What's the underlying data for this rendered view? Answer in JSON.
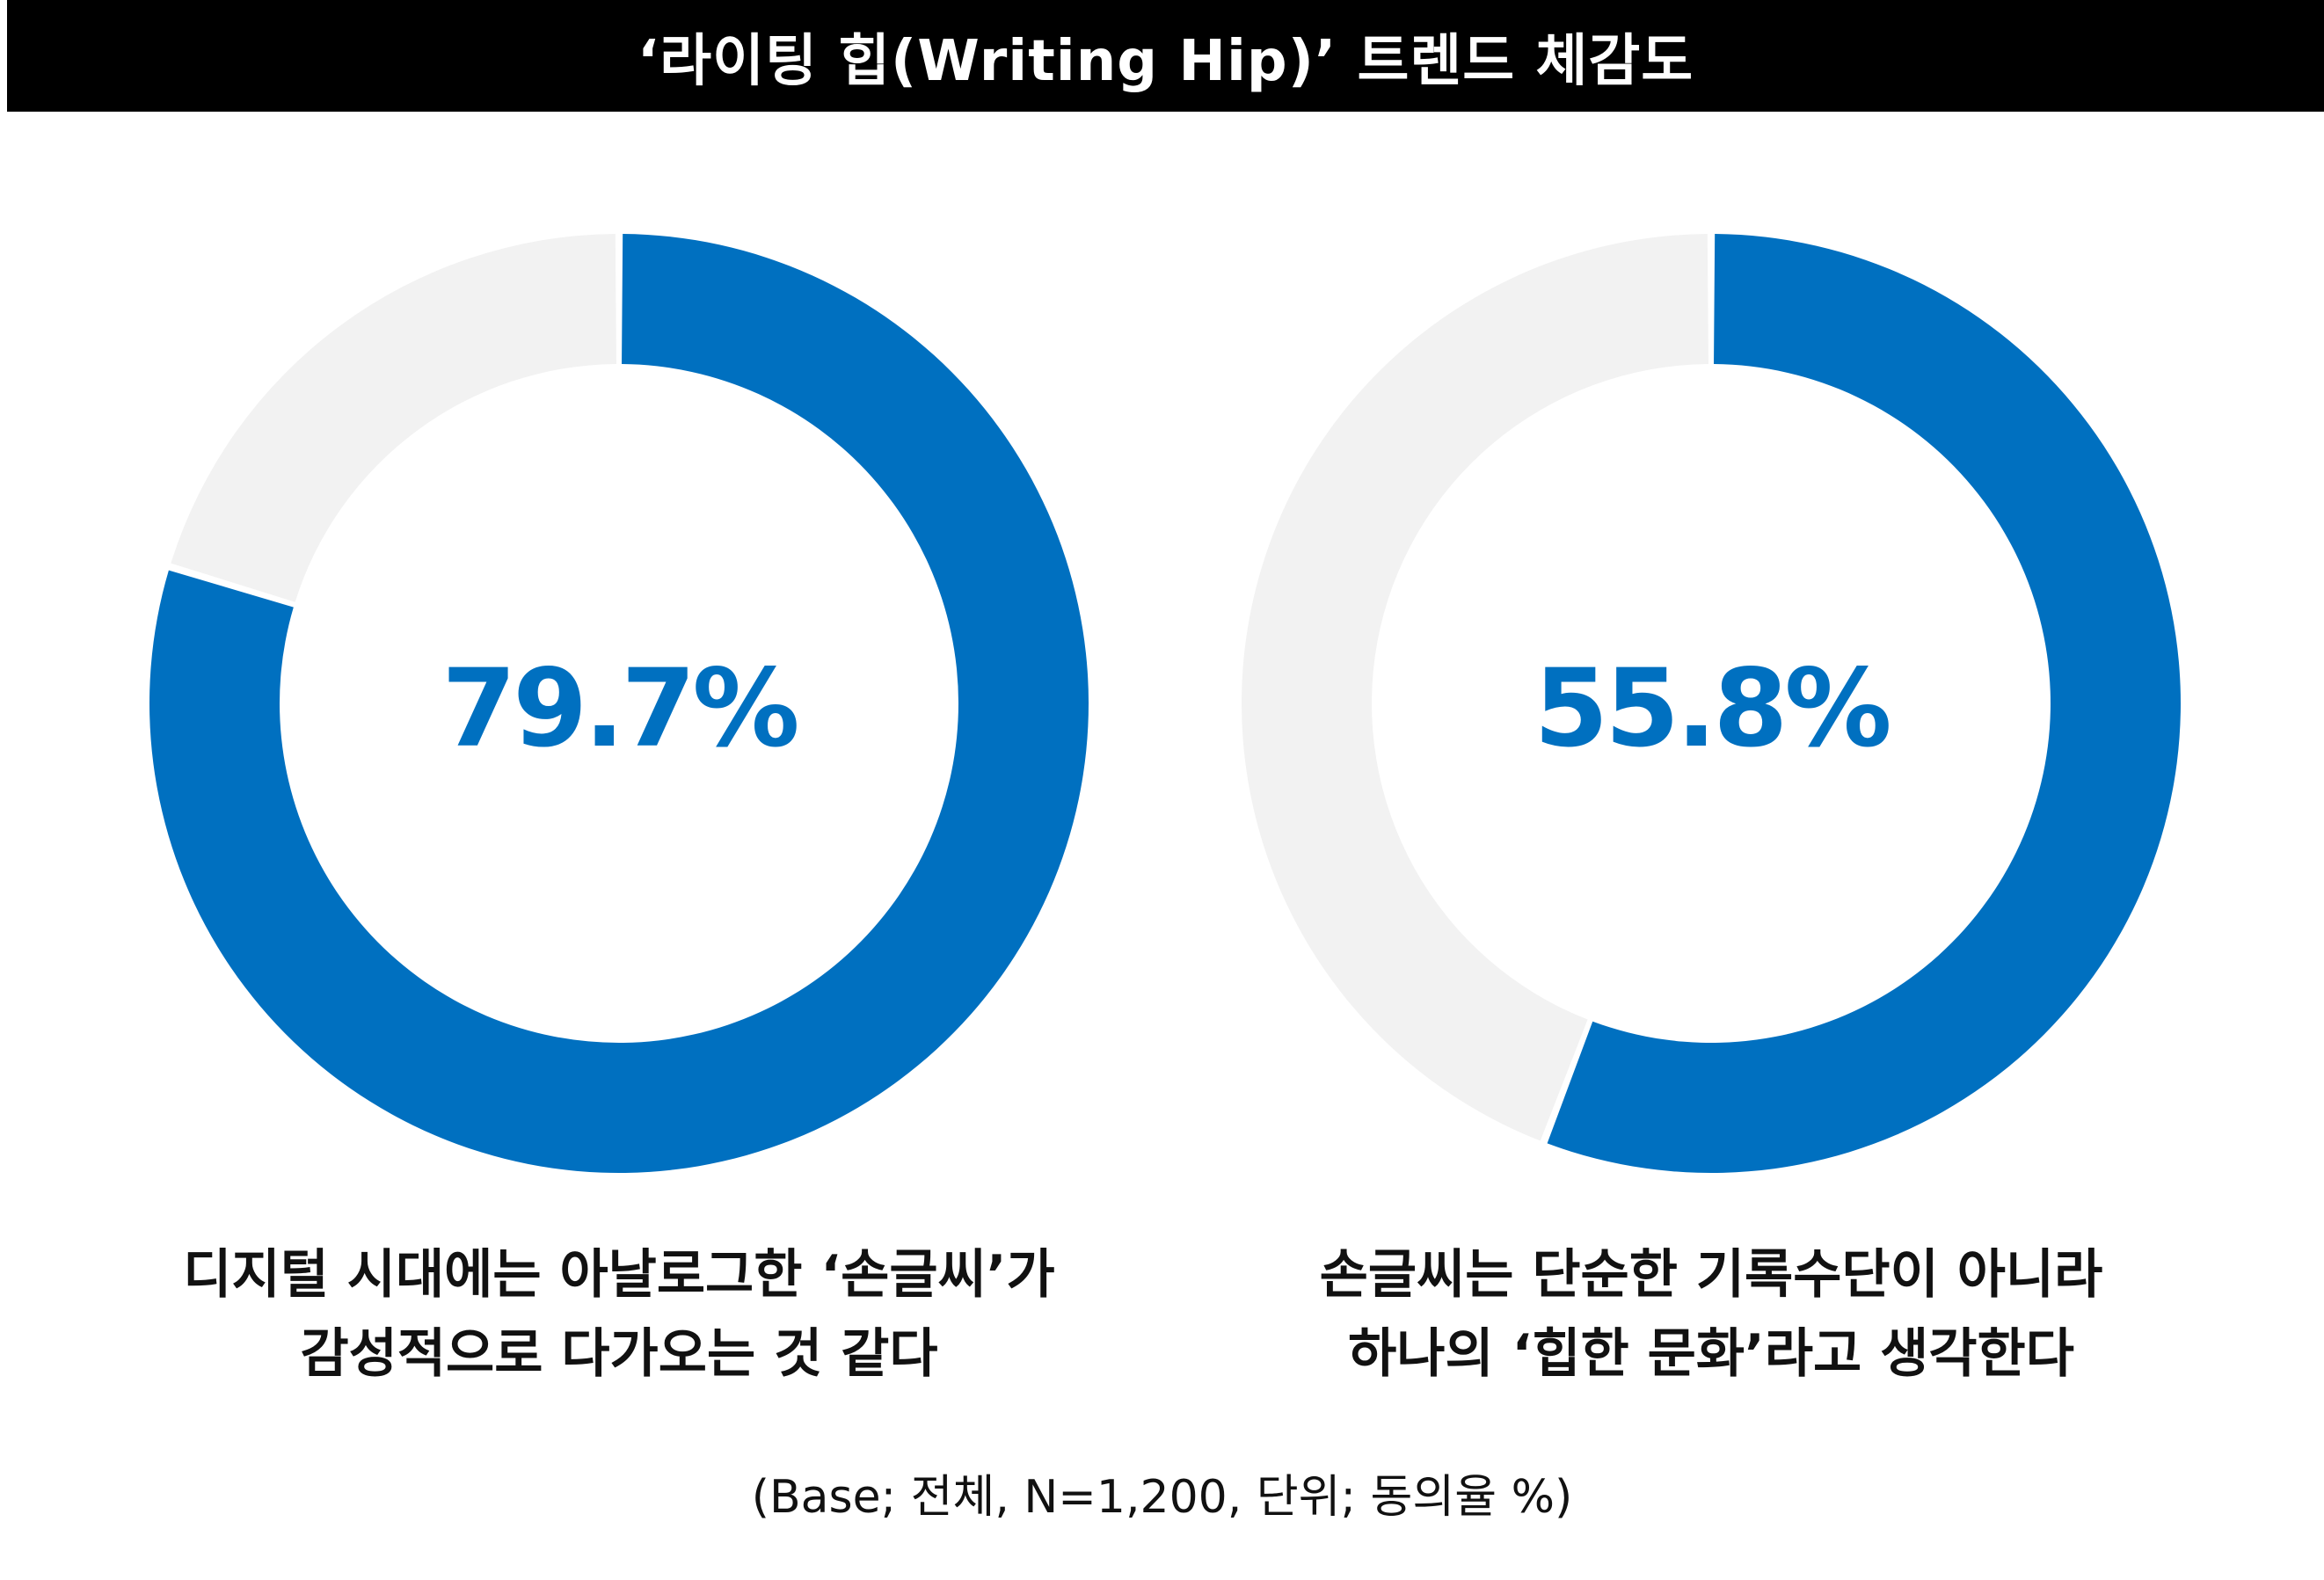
{
  "title": "‘라이팅 힙(Writing Hip)’ 트렌드 체감도",
  "colors": {
    "primary": "#0070c0",
    "remainder": "#f2f2f2",
    "title_bar_bg": "#000000",
    "title_bar_text": "#ffffff"
  },
  "chart_data": [
    {
      "type": "pie",
      "style": "donut",
      "value": 79.7,
      "remainder": 20.3,
      "unit": "%",
      "center_label": "79.7%",
      "caption_lines": [
        "디지털 시대에는 아날로그한 ‘손글씨’가",
        "감성적으로 다가오는 것 같다"
      ]
    },
    {
      "type": "pie",
      "style": "donut",
      "value": 55.8,
      "remainder": 44.2,
      "unit": "%",
      "center_label": "55.8%",
      "caption_lines": [
        "손글씨는 단순한 기록수단이 아니라",
        "하나의 ‘힙한 문화’라고 생각한다"
      ]
    }
  ],
  "footnote": "(Base; 전체, N=1,200, 단위; 동의율 %)"
}
